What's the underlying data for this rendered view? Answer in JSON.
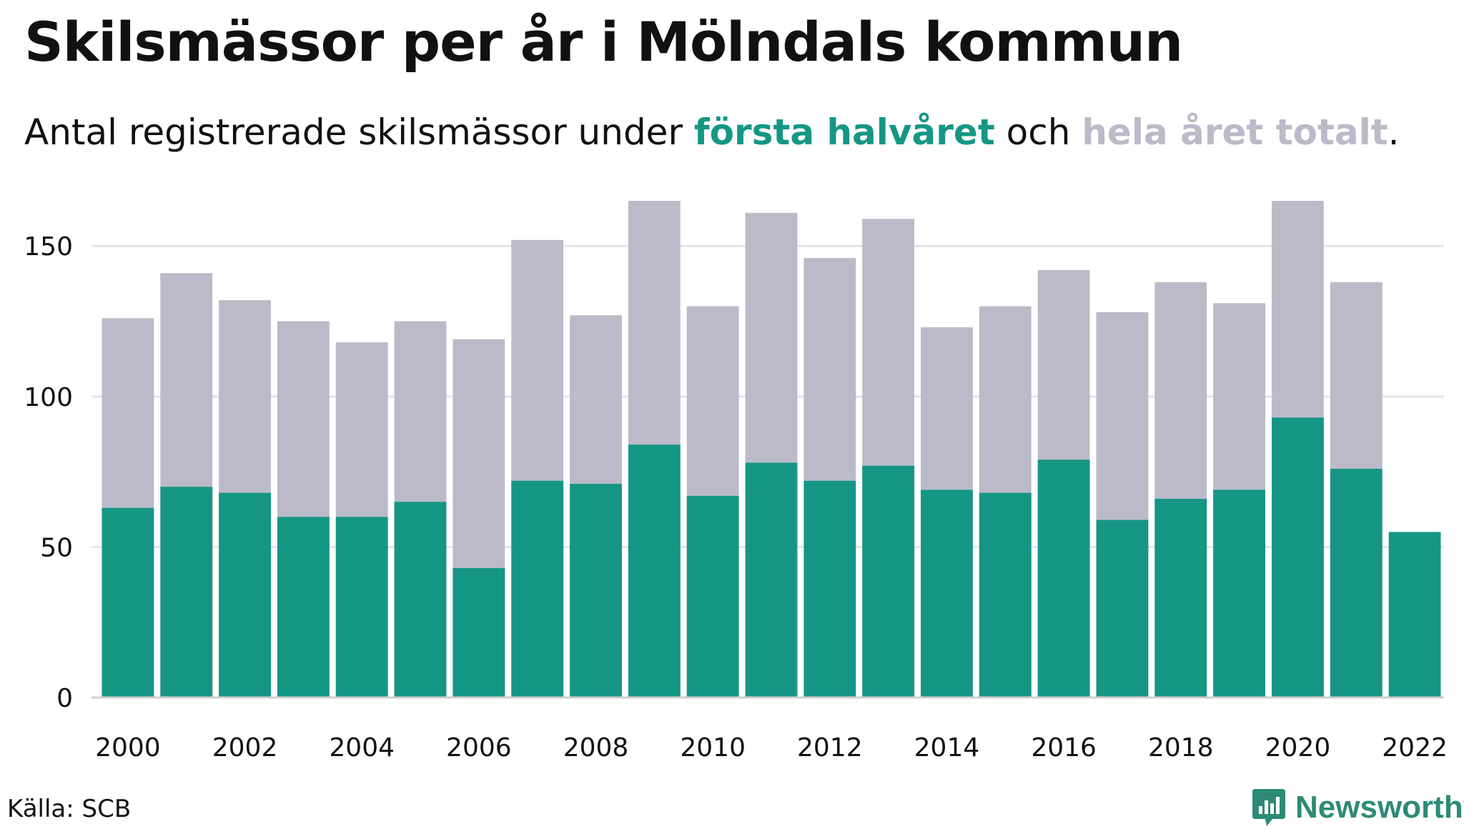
{
  "title": "Skilsmässor per år i Mölndals kommun",
  "subtitle": {
    "prefix": "Antal registrerade skilsmässor under ",
    "series1_label": "första halvåret",
    "middle": " och ",
    "series2_label": "hela året totalt",
    "suffix": "."
  },
  "colors": {
    "first_half": "#159685",
    "full_year": "#bbbac8",
    "grid": "#e4e4e6",
    "axis": "#cfcfd3",
    "brand": "#2d8a76"
  },
  "source": "Källa: SCB",
  "brand": {
    "name": "Newsworthy",
    "icon": "newsworthy-logo-icon"
  },
  "chart_data": {
    "type": "bar",
    "bar_mode": "overlay",
    "title": "Skilsmässor per år i Mölndals kommun",
    "xlabel": "",
    "ylabel": "",
    "ylim": [
      0,
      170
    ],
    "yticks": [
      0,
      50,
      100,
      150
    ],
    "grid": true,
    "x_tick_labels": [
      "2000",
      "2002",
      "2004",
      "2006",
      "2008",
      "2010",
      "2012",
      "2014",
      "2016",
      "2018",
      "2020",
      "2022"
    ],
    "categories": [
      "2000",
      "2001",
      "2002",
      "2003",
      "2004",
      "2005",
      "2006",
      "2007",
      "2008",
      "2009",
      "2010",
      "2011",
      "2012",
      "2013",
      "2014",
      "2015",
      "2016",
      "2017",
      "2018",
      "2019",
      "2020",
      "2021",
      "2022"
    ],
    "series": [
      {
        "name": "hela året totalt",
        "color": "#bbbac8",
        "values": [
          126,
          141,
          132,
          125,
          118,
          125,
          119,
          152,
          127,
          165,
          130,
          161,
          146,
          159,
          123,
          130,
          142,
          128,
          138,
          131,
          165,
          138,
          null
        ]
      },
      {
        "name": "första halvåret",
        "color": "#159685",
        "values": [
          63,
          70,
          68,
          60,
          60,
          65,
          43,
          72,
          71,
          84,
          67,
          78,
          72,
          77,
          69,
          68,
          79,
          59,
          66,
          69,
          93,
          76,
          55
        ]
      }
    ]
  }
}
